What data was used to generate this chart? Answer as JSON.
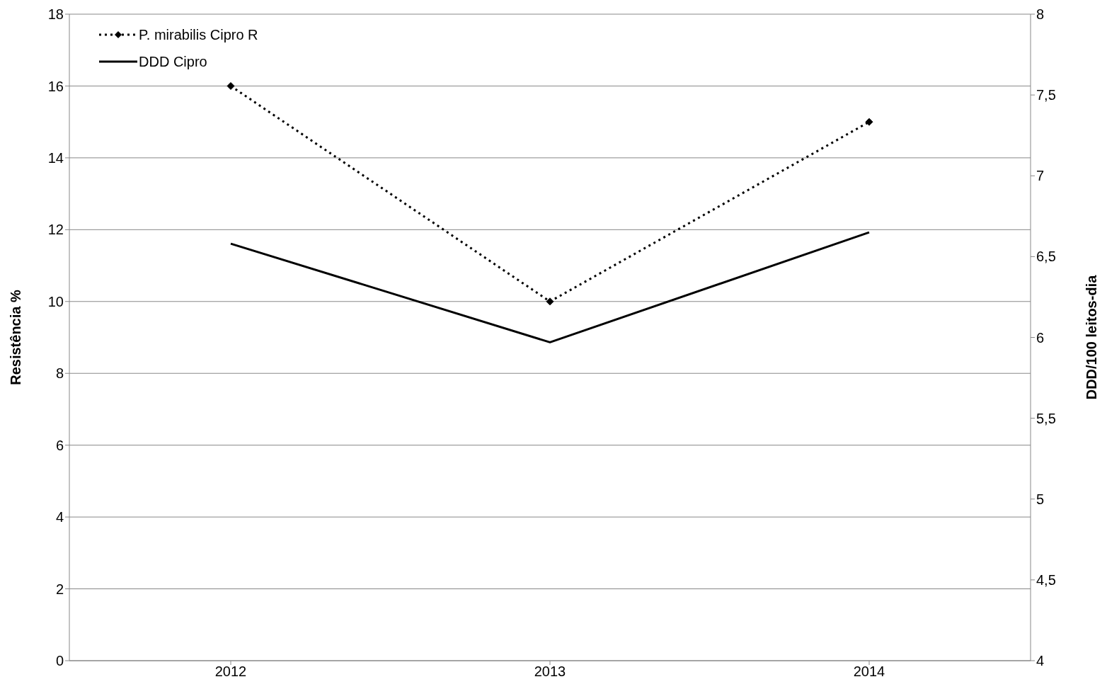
{
  "chart_data": {
    "type": "line",
    "categories": [
      "2012",
      "2013",
      "2014"
    ],
    "ylabel": "Resistência %",
    "y2label": "DDD/100 leitos-dia",
    "ylim": [
      0,
      18
    ],
    "yticks": [
      0,
      2,
      4,
      6,
      8,
      10,
      12,
      14,
      16,
      18
    ],
    "y2lim": [
      4,
      8
    ],
    "y2ticks": [
      4,
      {
        "value": 4.5,
        "label": "4,5"
      },
      5,
      {
        "value": 5.5,
        "label": "5,5"
      },
      6,
      {
        "value": 6.5,
        "label": "6,5"
      },
      7,
      {
        "value": 7.5,
        "label": "7,5"
      },
      8
    ],
    "grid": "y",
    "legend": "top left",
    "series": [
      {
        "name": "P. mirabilis Cipro R",
        "color": "#000000",
        "values": [
          16,
          10,
          15
        ],
        "line_style": "dotted",
        "marker": "diamond"
      },
      {
        "name": "DDD Cipro",
        "color": "#000000",
        "values": [
          6.58,
          5.97,
          6.65
        ],
        "axis": "y2",
        "line_style": "solid",
        "marker": "none"
      }
    ]
  }
}
